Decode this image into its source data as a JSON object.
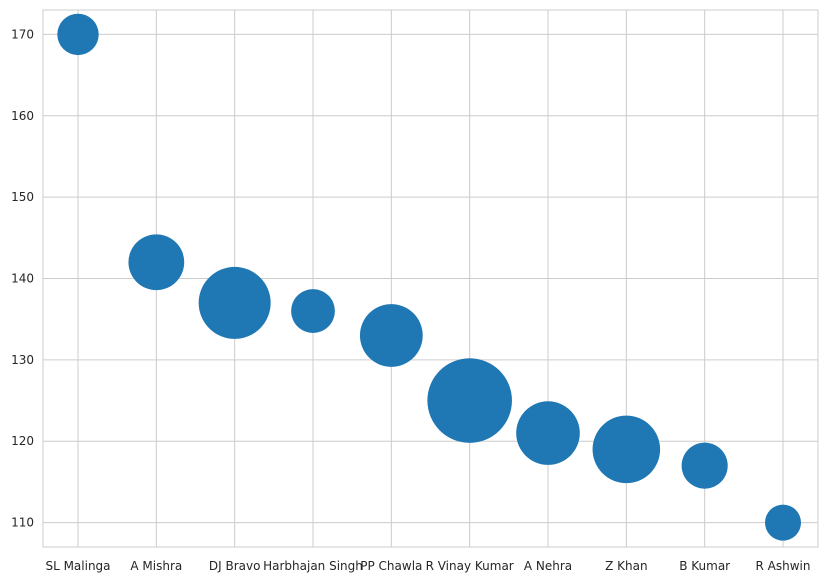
{
  "chart_data": {
    "type": "scatter",
    "title": "",
    "xlabel": "",
    "ylabel": "",
    "categories": [
      "SL Malinga",
      "A Mishra",
      "DJ Bravo",
      "Harbhajan Singh",
      "PP Chawla",
      "R Vinay Kumar",
      "A Nehra",
      "Z Khan",
      "B Kumar",
      "R Ashwin"
    ],
    "values": [
      170,
      142,
      137,
      136,
      133,
      125,
      121,
      119,
      117,
      110
    ],
    "bubble_size_relative": [
      0.33,
      0.6,
      1.0,
      0.37,
      0.76,
      1.38,
      0.78,
      0.88,
      0.41,
      0.25
    ],
    "ylim": [
      107,
      173
    ],
    "yticks": [
      110,
      120,
      130,
      140,
      150,
      160,
      170
    ],
    "grid": true,
    "legend": "none",
    "color": "#1f77b4"
  }
}
